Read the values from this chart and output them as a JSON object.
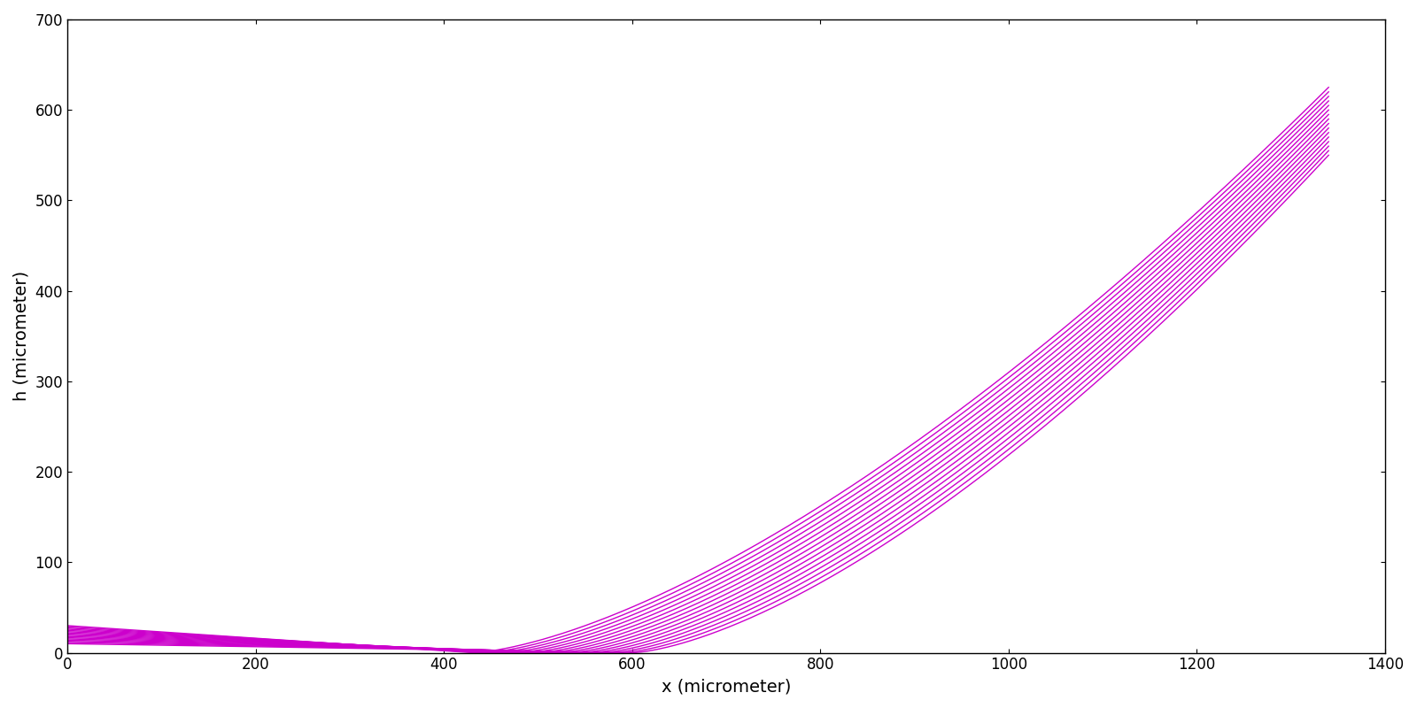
{
  "xlabel": "x (micrometer)",
  "ylabel": "h (micrometer)",
  "xlim": [
    0,
    1400
  ],
  "ylim": [
    0,
    700
  ],
  "xticks": [
    0,
    200,
    400,
    600,
    800,
    1000,
    1200,
    1400
  ],
  "yticks": [
    0,
    100,
    200,
    300,
    400,
    500,
    600,
    700
  ],
  "line_color": "#CC00CC",
  "line_width": 1.0,
  "n_curves": 16,
  "x_start": 0,
  "x_end": 1340,
  "n_points": 800,
  "figsize": [
    16,
    8
  ],
  "dpi": 100,
  "background_color": "#ffffff",
  "font_size_labels": 14,
  "font_size_ticks": 12
}
